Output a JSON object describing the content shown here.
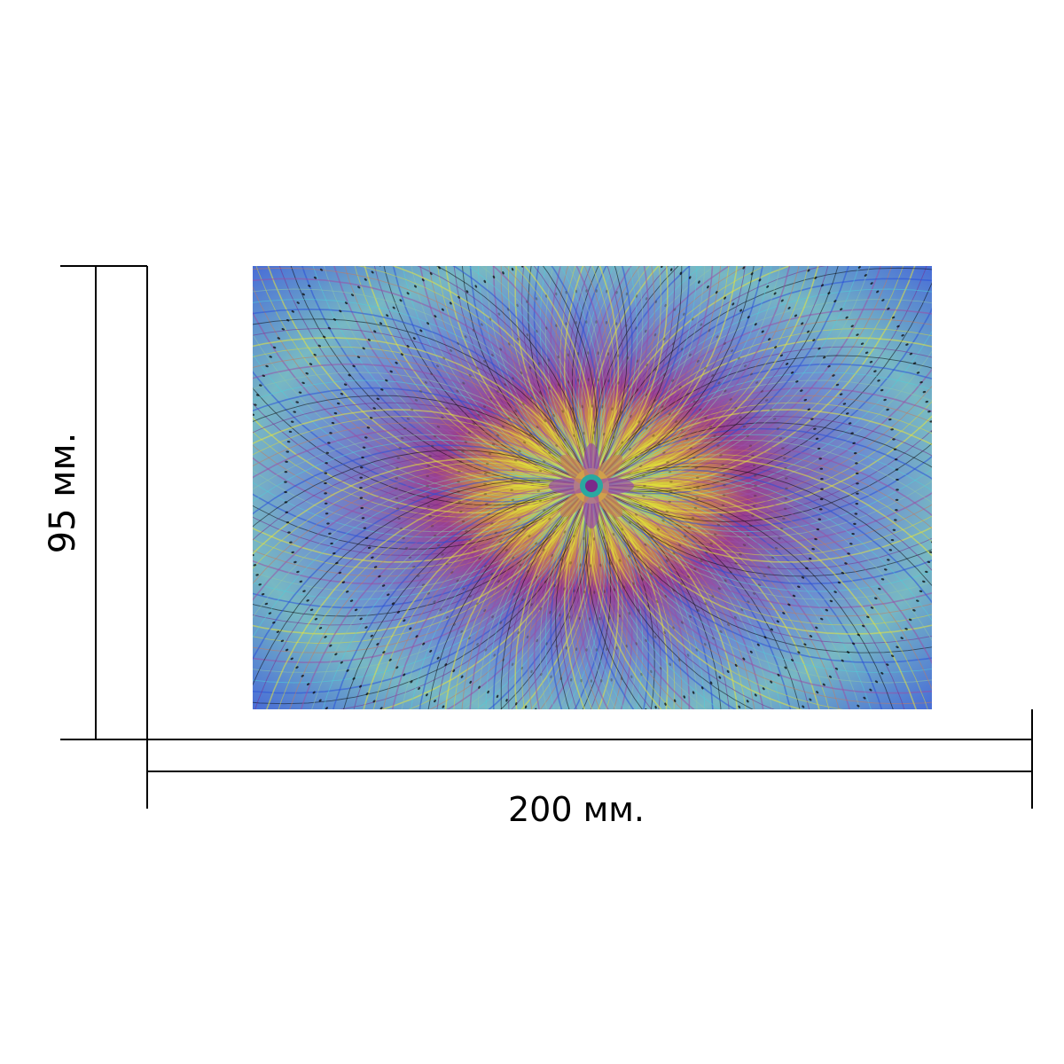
{
  "dimensions": {
    "height_label": "95 мм.",
    "width_label": "200 мм."
  },
  "artwork": {
    "subject": "mandala-swirl-icon",
    "palette": [
      "#2a50d8",
      "#4fd0d8",
      "#8fc4a8",
      "#9a4fa6",
      "#c87a5a",
      "#d8d83a",
      "#e6e63c",
      "#7a2a8a",
      "#0a0a0a"
    ]
  }
}
